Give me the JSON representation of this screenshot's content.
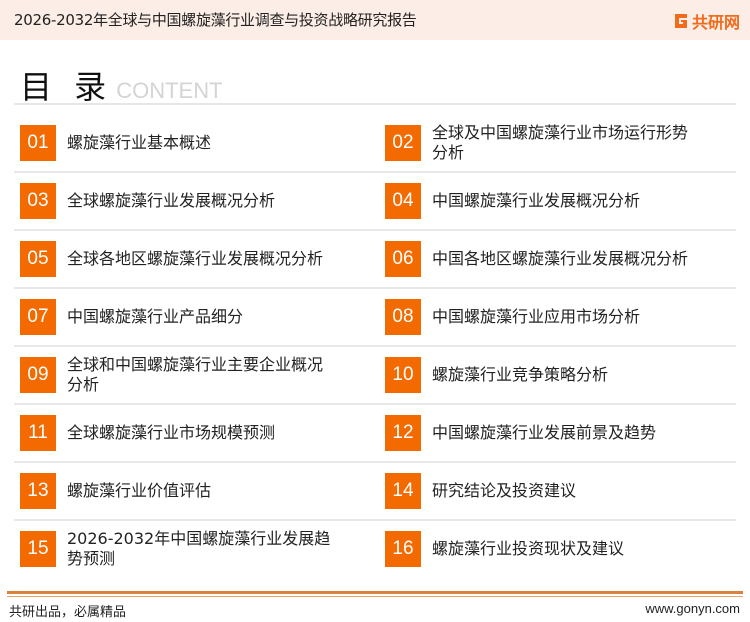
{
  "header": {
    "title": "2026-2032年全球与中国螺旋藻行业调查与投资战略研究报告",
    "logo_text": "共研网"
  },
  "toc": {
    "title": "目 录",
    "subtitle": "CONTENT"
  },
  "items": [
    {
      "num": "01",
      "label": "螺旋藻行业基本概述"
    },
    {
      "num": "02",
      "label": "全球及中国螺旋藻行业市场运行形势分析"
    },
    {
      "num": "03",
      "label": "全球螺旋藻行业发展概况分析"
    },
    {
      "num": "04",
      "label": "中国螺旋藻行业发展概况分析"
    },
    {
      "num": "05",
      "label": "全球各地区螺旋藻行业发展概况分析"
    },
    {
      "num": "06",
      "label": "中国各地区螺旋藻行业发展概况分析"
    },
    {
      "num": "07",
      "label": "中国螺旋藻行业产品细分"
    },
    {
      "num": "08",
      "label": "中国螺旋藻行业应用市场分析"
    },
    {
      "num": "09",
      "label": "全球和中国螺旋藻行业主要企业概况分析"
    },
    {
      "num": "10",
      "label": "螺旋藻行业竞争策略分析"
    },
    {
      "num": "11",
      "label": "全球螺旋藻行业市场规模预测"
    },
    {
      "num": "12",
      "label": "中国螺旋藻行业发展前景及趋势"
    },
    {
      "num": "13",
      "label": "螺旋藻行业价值评估"
    },
    {
      "num": "14",
      "label": "研究结论及投资建议"
    },
    {
      "num": "15",
      "label": "2026-2032年中国螺旋藻行业发展趋势预测"
    },
    {
      "num": "16",
      "label": "螺旋藻行业投资现状及建议"
    }
  ],
  "footer": {
    "slogan": "共研出品，必属精品",
    "website": "www.gonyn.com"
  },
  "colors": {
    "accent": "#f26a00",
    "header_bg": "#fcede6",
    "footer_line": "#d9823f"
  }
}
